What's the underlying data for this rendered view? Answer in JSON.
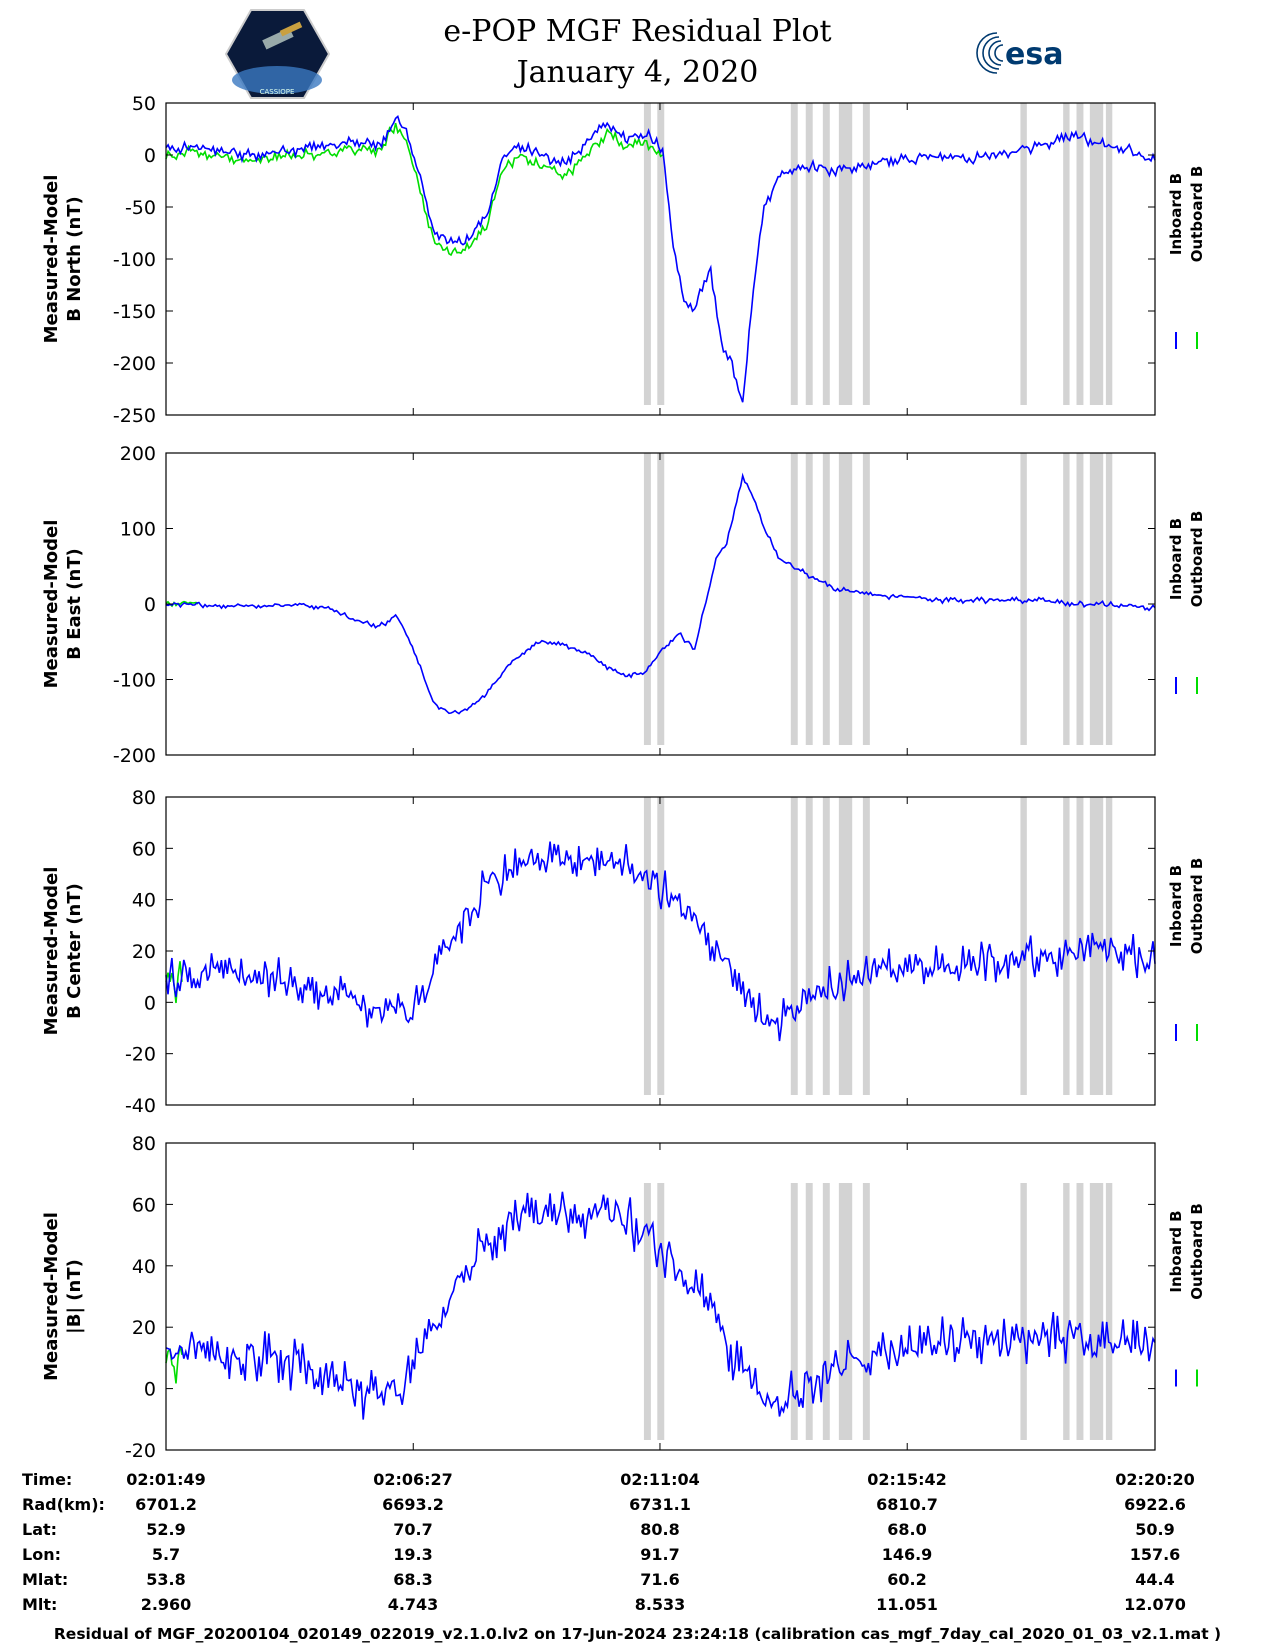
{
  "header": {
    "title_line1": "e-POP MGF Residual Plot",
    "title_line2": "January 4, 2020",
    "left_logo_text": "CASSIOPE",
    "right_logo_text": "esa"
  },
  "colors": {
    "inboard": "#0000ff",
    "outboard": "#00dd00",
    "gap": "#d3d3d3"
  },
  "chart_data": [
    {
      "type": "line",
      "ylabel_line1": "Measured-Model",
      "ylabel_line2": "B North (nT)",
      "ylim": [
        -250,
        50
      ],
      "yticks": [
        "50",
        "0",
        "-50",
        "-100",
        "-150",
        "-200",
        "-250"
      ],
      "ytick_values": [
        50,
        0,
        -50,
        -100,
        -150,
        -200,
        -250
      ],
      "xlim_minutes": [
        0,
        18.52
      ],
      "legend": [
        "Inboard B",
        "Outboard B"
      ],
      "series": [
        {
          "name": "Inboard B",
          "x": [
            0,
            0.5,
            1,
            1.5,
            2,
            2.5,
            3,
            3.5,
            4,
            4.3,
            4.5,
            4.8,
            5,
            5.3,
            5.6,
            6,
            6.3,
            6.6,
            7,
            7.5,
            8,
            8.3,
            8.6,
            9,
            9.3,
            9.5,
            9.7,
            9.9,
            10,
            10.2,
            10.4,
            10.6,
            10.8,
            11,
            11.2,
            11.5,
            11.8,
            12,
            12.5,
            13,
            13.5,
            14,
            14.5,
            15,
            15.5,
            16,
            16.5,
            17,
            17.5,
            18,
            18.52
          ],
          "y": [
            5,
            8,
            5,
            0,
            2,
            5,
            8,
            12,
            10,
            35,
            25,
            -30,
            -70,
            -85,
            -85,
            -60,
            -5,
            10,
            0,
            -10,
            20,
            30,
            15,
            20,
            5,
            -90,
            -140,
            -150,
            -130,
            -110,
            -180,
            -200,
            -240,
            -130,
            -50,
            -20,
            -15,
            -10,
            -15,
            -10,
            -5,
            -5,
            0,
            -5,
            0,
            5,
            10,
            20,
            10,
            5,
            -5
          ]
        },
        {
          "name": "Outboard B",
          "x": [
            0,
            0.5,
            1,
            1.5,
            2,
            2.5,
            3,
            3.5,
            4,
            4.3,
            4.5,
            4.8,
            5,
            5.3,
            5.6,
            6,
            6.3,
            6.6,
            7,
            7.5,
            8,
            8.3,
            8.6,
            9,
            9.3
          ],
          "y": [
            -2,
            4,
            0,
            -5,
            -3,
            0,
            2,
            6,
            5,
            30,
            15,
            -40,
            -80,
            -95,
            -92,
            -70,
            -15,
            0,
            -10,
            -20,
            10,
            20,
            8,
            12,
            0
          ]
        }
      ]
    },
    {
      "type": "line",
      "ylabel_line1": "Measured-Model",
      "ylabel_line2": "B East (nT)",
      "ylim": [
        -200,
        200
      ],
      "yticks": [
        "200",
        "100",
        "0",
        "-100",
        "-200"
      ],
      "ytick_values": [
        200,
        100,
        0,
        -100,
        -200
      ],
      "xlim_minutes": [
        0,
        18.52
      ],
      "legend": [
        "Inboard B",
        "Outboard B"
      ],
      "series": [
        {
          "name": "Inboard B",
          "x": [
            0,
            0.5,
            1,
            1.5,
            2,
            2.5,
            3,
            3.5,
            4,
            4.3,
            4.5,
            4.8,
            5,
            5.3,
            5.6,
            6,
            6.3,
            6.6,
            7,
            7.5,
            8,
            8.3,
            8.6,
            9,
            9.3,
            9.6,
            9.9,
            10,
            10.3,
            10.5,
            10.8,
            11,
            11.2,
            11.5,
            12,
            12.5,
            13,
            13.5,
            14,
            14.5,
            15,
            15.5,
            16,
            16.5,
            17,
            17.5,
            18,
            18.52
          ],
          "y": [
            0,
            0,
            -2,
            -3,
            -2,
            0,
            -5,
            -20,
            -30,
            -15,
            -40,
            -90,
            -130,
            -145,
            -140,
            -120,
            -90,
            -70,
            -50,
            -55,
            -70,
            -85,
            -95,
            -90,
            -60,
            -40,
            -60,
            -30,
            60,
            80,
            170,
            140,
            100,
            60,
            40,
            20,
            15,
            10,
            10,
            5,
            5,
            5,
            5,
            5,
            0,
            0,
            -2,
            -5
          ]
        },
        {
          "name": "Outboard B",
          "x": [
            0,
            0.3,
            0.6
          ],
          "y": [
            0,
            2,
            0
          ]
        }
      ]
    },
    {
      "type": "line",
      "ylabel_line1": "Measured-Model",
      "ylabel_line2": "B Center (nT)",
      "ylim": [
        -40,
        80
      ],
      "yticks": [
        "80",
        "60",
        "40",
        "20",
        "0",
        "-20",
        "-40"
      ],
      "ytick_values": [
        80,
        60,
        40,
        20,
        0,
        -20,
        -40
      ],
      "xlim_minutes": [
        0,
        18.52
      ],
      "legend": [
        "Inboard B",
        "Outboard B"
      ],
      "series": [
        {
          "name": "Inboard B",
          "x": [
            0,
            1,
            2,
            3,
            3.5,
            4,
            4.5,
            5,
            5.5,
            6,
            6.5,
            7,
            7.5,
            8,
            8.5,
            9,
            9.5,
            10,
            10.5,
            11,
            11.3,
            11.6,
            12,
            12.5,
            13,
            13.5,
            14,
            14.5,
            15,
            15.5,
            16,
            16.5,
            17,
            17.5,
            18,
            18.52
          ],
          "y": [
            10,
            12,
            10,
            5,
            2,
            -5,
            -5,
            10,
            30,
            45,
            52,
            55,
            57,
            58,
            55,
            48,
            40,
            30,
            15,
            0,
            -8,
            -5,
            2,
            6,
            10,
            12,
            13,
            14,
            15,
            16,
            17,
            18,
            20,
            22,
            20,
            15
          ]
        },
        {
          "name": "Outboard B",
          "x": [
            0,
            0.3
          ],
          "y": [
            7,
            8
          ]
        }
      ]
    },
    {
      "type": "line",
      "ylabel_line1": "Measured-Model",
      "ylabel_line2": "|B| (nT)",
      "ylim": [
        -20,
        80
      ],
      "yticks": [
        "80",
        "60",
        "40",
        "20",
        "0",
        "-20"
      ],
      "ytick_values": [
        80,
        60,
        40,
        20,
        0,
        -20
      ],
      "xlim_minutes": [
        0,
        18.52
      ],
      "legend": [
        "Inboard B",
        "Outboard B"
      ],
      "series": [
        {
          "name": "Inboard B",
          "x": [
            0,
            1,
            2,
            3,
            3.5,
            4,
            4.5,
            5,
            5.5,
            6,
            6.5,
            7,
            7.5,
            8,
            8.5,
            9,
            9.5,
            10,
            10.5,
            11,
            11.3,
            11.6,
            12,
            12.5,
            13,
            13.5,
            14,
            14.5,
            15,
            15.5,
            16,
            16.5,
            17,
            17.5,
            18,
            18.52
          ],
          "y": [
            12,
            12,
            10,
            5,
            0,
            -3,
            2,
            18,
            35,
            48,
            54,
            56,
            57,
            58,
            56,
            50,
            42,
            30,
            15,
            0,
            -7,
            -5,
            2,
            6,
            10,
            13,
            14,
            15,
            16,
            16,
            17,
            16,
            16,
            15,
            15,
            15
          ]
        },
        {
          "name": "Outboard B",
          "x": [
            0,
            0.3
          ],
          "y": [
            9,
            11
          ]
        }
      ]
    }
  ],
  "gap_intervals_minutes": [
    [
      8.95,
      9.08
    ],
    [
      9.2,
      9.33
    ],
    [
      11.7,
      11.83
    ],
    [
      11.98,
      12.11
    ],
    [
      12.3,
      12.43
    ],
    [
      12.6,
      12.85
    ],
    [
      13.05,
      13.18
    ],
    [
      16.0,
      16.12
    ],
    [
      16.8,
      16.92
    ],
    [
      17.05,
      17.18
    ],
    [
      17.3,
      17.55
    ],
    [
      17.6,
      17.72
    ]
  ],
  "info": {
    "labels": [
      "Time:",
      "Rad(km):",
      "Lat:",
      "Lon:",
      "Mlat:",
      "Mlt:"
    ],
    "columns": [
      [
        "02:01:49",
        "6701.2",
        "52.9",
        "5.7",
        "53.8",
        "2.960"
      ],
      [
        "02:06:27",
        "6693.2",
        "70.7",
        "19.3",
        "68.3",
        "4.743"
      ],
      [
        "02:11:04",
        "6731.1",
        "80.8",
        "91.7",
        "71.6",
        "8.533"
      ],
      [
        "02:15:42",
        "6810.7",
        "68.0",
        "146.9",
        "60.2",
        "11.051"
      ],
      [
        "02:20:20",
        "6922.6",
        "50.9",
        "157.6",
        "44.4",
        "12.070"
      ]
    ]
  },
  "footer": "Residual of MGF_20200104_020149_022019_v2.1.0.lv2 on 17-Jun-2024 23:24:18 (calibration cas_mgf_7day_cal_2020_01_03_v2.1.mat )"
}
